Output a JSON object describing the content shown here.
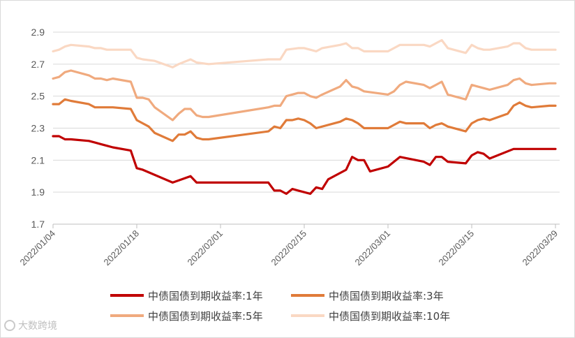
{
  "chart_data": {
    "type": "line",
    "ylim": [
      1.7,
      2.9
    ],
    "yticks": [
      "1.7",
      "1.9",
      "2.1",
      "2.3",
      "2.5",
      "2.7",
      "2.9"
    ],
    "xticks": [
      {
        "label": "2022/01/04",
        "date": "2022-01-04"
      },
      {
        "label": "2022/01/18",
        "date": "2022-01-18"
      },
      {
        "label": "2022/02/01",
        "date": "2022-02-01"
      },
      {
        "label": "2022/02/15",
        "date": "2022-02-15"
      },
      {
        "label": "2022/03/01",
        "date": "2022-03-01"
      },
      {
        "label": "2022/03/15",
        "date": "2022-03-15"
      },
      {
        "label": "2022/03/29",
        "date": "2022-03-29"
      }
    ],
    "grid": "horizontal",
    "legend_position": "bottom",
    "series": [
      {
        "name": "中债国债到期收益率:1年",
        "color": "#c00000",
        "points": [
          [
            "2022-01-04",
            2.25
          ],
          [
            "2022-01-05",
            2.25
          ],
          [
            "2022-01-06",
            2.23
          ],
          [
            "2022-01-07",
            2.23
          ],
          [
            "2022-01-10",
            2.22
          ],
          [
            "2022-01-11",
            2.21
          ],
          [
            "2022-01-12",
            2.2
          ],
          [
            "2022-01-13",
            2.19
          ],
          [
            "2022-01-14",
            2.18
          ],
          [
            "2022-01-17",
            2.16
          ],
          [
            "2022-01-18",
            2.05
          ],
          [
            "2022-01-19",
            2.04
          ],
          [
            "2022-01-24",
            1.96
          ],
          [
            "2022-01-27",
            2.0
          ],
          [
            "2022-01-28",
            1.96
          ],
          [
            "2022-01-29",
            1.96
          ],
          [
            "2022-01-30",
            1.96
          ],
          [
            "2022-02-09",
            1.96
          ],
          [
            "2022-02-10",
            1.91
          ],
          [
            "2022-02-11",
            1.91
          ],
          [
            "2022-02-12",
            1.89
          ],
          [
            "2022-02-13",
            1.92
          ],
          [
            "2022-02-14",
            1.91
          ],
          [
            "2022-02-15",
            1.9
          ],
          [
            "2022-02-16",
            1.89
          ],
          [
            "2022-02-17",
            1.93
          ],
          [
            "2022-02-18",
            1.92
          ],
          [
            "2022-02-19",
            1.98
          ],
          [
            "2022-02-22",
            2.04
          ],
          [
            "2022-02-23",
            2.12
          ],
          [
            "2022-02-24",
            2.1
          ],
          [
            "2022-02-25",
            2.1
          ],
          [
            "2022-02-26",
            2.03
          ],
          [
            "2022-03-01",
            2.06
          ],
          [
            "2022-03-03",
            2.12
          ],
          [
            "2022-03-07",
            2.09
          ],
          [
            "2022-03-08",
            2.07
          ],
          [
            "2022-03-09",
            2.12
          ],
          [
            "2022-03-10",
            2.12
          ],
          [
            "2022-03-11",
            2.09
          ],
          [
            "2022-03-14",
            2.08
          ],
          [
            "2022-03-15",
            2.13
          ],
          [
            "2022-03-16",
            2.15
          ],
          [
            "2022-03-17",
            2.14
          ],
          [
            "2022-03-18",
            2.11
          ],
          [
            "2022-03-22",
            2.17
          ],
          [
            "2022-03-23",
            2.17
          ],
          [
            "2022-03-24",
            2.17
          ],
          [
            "2022-03-25",
            2.17
          ],
          [
            "2022-03-28",
            2.17
          ],
          [
            "2022-03-29",
            2.17
          ]
        ]
      },
      {
        "name": "中债国债到期收益率:3年",
        "color": "#e07b39",
        "points": [
          [
            "2022-01-04",
            2.45
          ],
          [
            "2022-01-05",
            2.45
          ],
          [
            "2022-01-06",
            2.48
          ],
          [
            "2022-01-07",
            2.47
          ],
          [
            "2022-01-10",
            2.45
          ],
          [
            "2022-01-11",
            2.43
          ],
          [
            "2022-01-12",
            2.43
          ],
          [
            "2022-01-13",
            2.43
          ],
          [
            "2022-01-14",
            2.43
          ],
          [
            "2022-01-17",
            2.42
          ],
          [
            "2022-01-18",
            2.35
          ],
          [
            "2022-01-19",
            2.33
          ],
          [
            "2022-01-20",
            2.31
          ],
          [
            "2022-01-21",
            2.27
          ],
          [
            "2022-01-24",
            2.22
          ],
          [
            "2022-01-25",
            2.26
          ],
          [
            "2022-01-26",
            2.26
          ],
          [
            "2022-01-27",
            2.28
          ],
          [
            "2022-01-28",
            2.24
          ],
          [
            "2022-01-29",
            2.23
          ],
          [
            "2022-01-30",
            2.23
          ],
          [
            "2022-02-09",
            2.28
          ],
          [
            "2022-02-10",
            2.31
          ],
          [
            "2022-02-11",
            2.3
          ],
          [
            "2022-02-12",
            2.35
          ],
          [
            "2022-02-13",
            2.35
          ],
          [
            "2022-02-14",
            2.36
          ],
          [
            "2022-02-15",
            2.35
          ],
          [
            "2022-02-16",
            2.33
          ],
          [
            "2022-02-17",
            2.3
          ],
          [
            "2022-02-21",
            2.34
          ],
          [
            "2022-02-22",
            2.36
          ],
          [
            "2022-02-23",
            2.35
          ],
          [
            "2022-02-24",
            2.33
          ],
          [
            "2022-02-25",
            2.3
          ],
          [
            "2022-03-01",
            2.3
          ],
          [
            "2022-03-02",
            2.32
          ],
          [
            "2022-03-03",
            2.34
          ],
          [
            "2022-03-04",
            2.33
          ],
          [
            "2022-03-07",
            2.33
          ],
          [
            "2022-03-08",
            2.3
          ],
          [
            "2022-03-09",
            2.32
          ],
          [
            "2022-03-10",
            2.33
          ],
          [
            "2022-03-11",
            2.31
          ],
          [
            "2022-03-14",
            2.28
          ],
          [
            "2022-03-15",
            2.33
          ],
          [
            "2022-03-16",
            2.35
          ],
          [
            "2022-03-17",
            2.36
          ],
          [
            "2022-03-18",
            2.35
          ],
          [
            "2022-03-21",
            2.39
          ],
          [
            "2022-03-22",
            2.44
          ],
          [
            "2022-03-23",
            2.46
          ],
          [
            "2022-03-24",
            2.44
          ],
          [
            "2022-03-25",
            2.43
          ],
          [
            "2022-03-28",
            2.44
          ],
          [
            "2022-03-29",
            2.44
          ]
        ]
      },
      {
        "name": "中债国债到期收益率:5年",
        "color": "#f0aa7e",
        "points": [
          [
            "2022-01-04",
            2.61
          ],
          [
            "2022-01-05",
            2.62
          ],
          [
            "2022-01-06",
            2.65
          ],
          [
            "2022-01-07",
            2.66
          ],
          [
            "2022-01-10",
            2.63
          ],
          [
            "2022-01-11",
            2.61
          ],
          [
            "2022-01-12",
            2.61
          ],
          [
            "2022-01-13",
            2.6
          ],
          [
            "2022-01-14",
            2.61
          ],
          [
            "2022-01-17",
            2.59
          ],
          [
            "2022-01-18",
            2.49
          ],
          [
            "2022-01-19",
            2.49
          ],
          [
            "2022-01-20",
            2.48
          ],
          [
            "2022-01-21",
            2.43
          ],
          [
            "2022-01-24",
            2.35
          ],
          [
            "2022-01-25",
            2.39
          ],
          [
            "2022-01-26",
            2.42
          ],
          [
            "2022-01-27",
            2.42
          ],
          [
            "2022-01-28",
            2.38
          ],
          [
            "2022-01-29",
            2.37
          ],
          [
            "2022-01-30",
            2.37
          ],
          [
            "2022-02-09",
            2.43
          ],
          [
            "2022-02-10",
            2.44
          ],
          [
            "2022-02-11",
            2.44
          ],
          [
            "2022-02-12",
            2.5
          ],
          [
            "2022-02-14",
            2.52
          ],
          [
            "2022-02-15",
            2.52
          ],
          [
            "2022-02-16",
            2.5
          ],
          [
            "2022-02-17",
            2.49
          ],
          [
            "2022-02-18",
            2.51
          ],
          [
            "2022-02-21",
            2.56
          ],
          [
            "2022-02-22",
            2.6
          ],
          [
            "2022-02-23",
            2.56
          ],
          [
            "2022-02-24",
            2.55
          ],
          [
            "2022-02-25",
            2.53
          ],
          [
            "2022-03-01",
            2.51
          ],
          [
            "2022-03-02",
            2.53
          ],
          [
            "2022-03-03",
            2.57
          ],
          [
            "2022-03-04",
            2.59
          ],
          [
            "2022-03-07",
            2.57
          ],
          [
            "2022-03-08",
            2.55
          ],
          [
            "2022-03-09",
            2.57
          ],
          [
            "2022-03-10",
            2.59
          ],
          [
            "2022-03-11",
            2.51
          ],
          [
            "2022-03-14",
            2.48
          ],
          [
            "2022-03-15",
            2.57
          ],
          [
            "2022-03-16",
            2.56
          ],
          [
            "2022-03-17",
            2.55
          ],
          [
            "2022-03-18",
            2.54
          ],
          [
            "2022-03-21",
            2.57
          ],
          [
            "2022-03-22",
            2.6
          ],
          [
            "2022-03-23",
            2.61
          ],
          [
            "2022-03-24",
            2.58
          ],
          [
            "2022-03-25",
            2.57
          ],
          [
            "2022-03-28",
            2.58
          ],
          [
            "2022-03-29",
            2.58
          ]
        ]
      },
      {
        "name": "中债国债到期收益率:10年",
        "color": "#fad8c3",
        "points": [
          [
            "2022-01-04",
            2.78
          ],
          [
            "2022-01-05",
            2.79
          ],
          [
            "2022-01-06",
            2.81
          ],
          [
            "2022-01-07",
            2.82
          ],
          [
            "2022-01-10",
            2.81
          ],
          [
            "2022-01-11",
            2.8
          ],
          [
            "2022-01-12",
            2.8
          ],
          [
            "2022-01-13",
            2.79
          ],
          [
            "2022-01-14",
            2.79
          ],
          [
            "2022-01-17",
            2.79
          ],
          [
            "2022-01-18",
            2.74
          ],
          [
            "2022-01-19",
            2.73
          ],
          [
            "2022-01-21",
            2.72
          ],
          [
            "2022-01-24",
            2.68
          ],
          [
            "2022-01-25",
            2.7
          ],
          [
            "2022-01-27",
            2.73
          ],
          [
            "2022-01-28",
            2.71
          ],
          [
            "2022-01-30",
            2.7
          ],
          [
            "2022-02-09",
            2.73
          ],
          [
            "2022-02-10",
            2.73
          ],
          [
            "2022-02-11",
            2.73
          ],
          [
            "2022-02-12",
            2.79
          ],
          [
            "2022-02-14",
            2.8
          ],
          [
            "2022-02-15",
            2.8
          ],
          [
            "2022-02-16",
            2.79
          ],
          [
            "2022-02-17",
            2.78
          ],
          [
            "2022-02-18",
            2.8
          ],
          [
            "2022-02-21",
            2.82
          ],
          [
            "2022-02-22",
            2.83
          ],
          [
            "2022-02-23",
            2.8
          ],
          [
            "2022-02-24",
            2.8
          ],
          [
            "2022-02-25",
            2.78
          ],
          [
            "2022-03-01",
            2.78
          ],
          [
            "2022-03-02",
            2.8
          ],
          [
            "2022-03-03",
            2.82
          ],
          [
            "2022-03-04",
            2.82
          ],
          [
            "2022-03-07",
            2.82
          ],
          [
            "2022-03-08",
            2.81
          ],
          [
            "2022-03-09",
            2.83
          ],
          [
            "2022-03-10",
            2.85
          ],
          [
            "2022-03-11",
            2.8
          ],
          [
            "2022-03-14",
            2.77
          ],
          [
            "2022-03-15",
            2.82
          ],
          [
            "2022-03-16",
            2.8
          ],
          [
            "2022-03-17",
            2.79
          ],
          [
            "2022-03-18",
            2.79
          ],
          [
            "2022-03-21",
            2.81
          ],
          [
            "2022-03-22",
            2.83
          ],
          [
            "2022-03-23",
            2.83
          ],
          [
            "2022-03-24",
            2.8
          ],
          [
            "2022-03-25",
            2.79
          ],
          [
            "2022-03-28",
            2.79
          ],
          [
            "2022-03-29",
            2.79
          ]
        ]
      }
    ]
  },
  "watermark": {
    "text": "大数跨境"
  }
}
